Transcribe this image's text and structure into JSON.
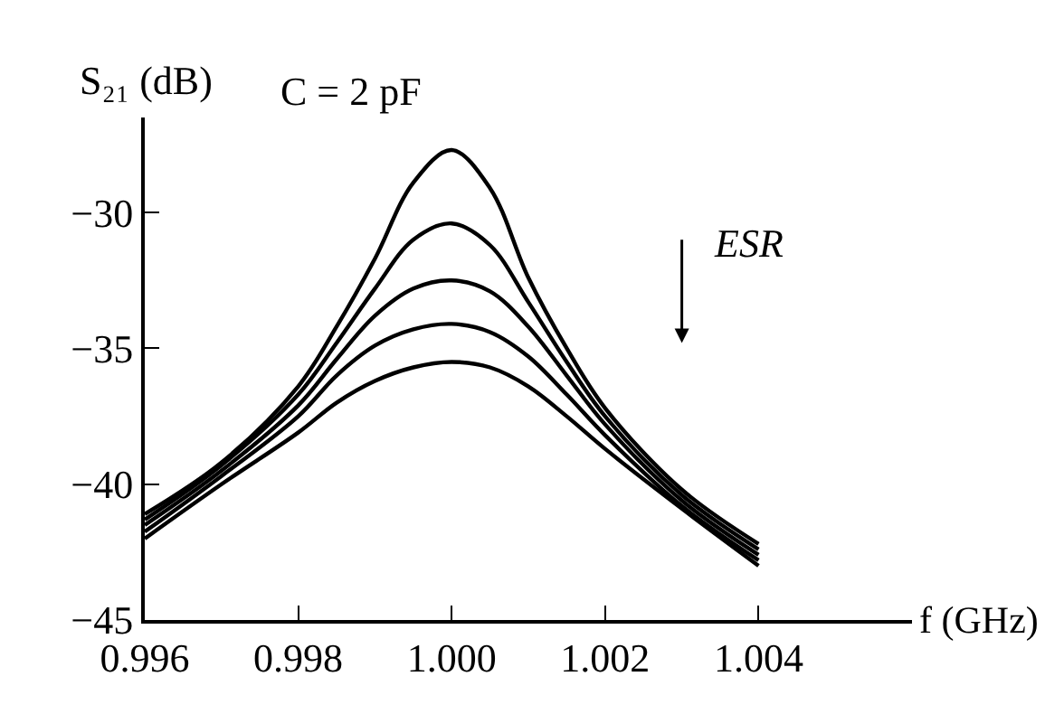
{
  "chart_data": {
    "type": "line",
    "xlabel": "f (GHz)",
    "ylabel": "S₂₁ (dB)",
    "x": [
      0.996,
      0.997,
      0.998,
      0.9985,
      0.999,
      0.9995,
      1.0,
      1.0005,
      1.001,
      1.0015,
      1.002,
      1.003,
      1.004
    ],
    "series": [
      {
        "color": "#000000",
        "values": [
          -41.1,
          -39.2,
          -36.4,
          -34.2,
          -31.7,
          -28.9,
          -27.7,
          -29.1,
          -32.4,
          -35.0,
          -37.2,
          -40.2,
          -42.2
        ]
      },
      {
        "color": "#000000",
        "values": [
          -41.3,
          -39.3,
          -36.7,
          -34.8,
          -32.8,
          -31.0,
          -30.4,
          -31.2,
          -33.3,
          -35.5,
          -37.5,
          -40.4,
          -42.4
        ]
      },
      {
        "color": "#000000",
        "values": [
          -41.5,
          -39.5,
          -37.1,
          -35.4,
          -33.8,
          -32.8,
          -32.5,
          -32.9,
          -34.2,
          -36.0,
          -37.8,
          -40.6,
          -42.6
        ]
      },
      {
        "color": "#000000",
        "values": [
          -41.75,
          -39.7,
          -37.5,
          -36.0,
          -34.9,
          -34.3,
          -34.1,
          -34.4,
          -35.3,
          -36.7,
          -38.2,
          -40.8,
          -42.8
        ]
      },
      {
        "color": "#000000",
        "values": [
          -42.0,
          -40.0,
          -38.1,
          -37.0,
          -36.2,
          -35.7,
          -35.5,
          -35.7,
          -36.4,
          -37.5,
          -38.7,
          -40.9,
          -43.0
        ]
      }
    ],
    "xlim": [
      0.996,
      1.006
    ],
    "ylim": [
      -45,
      -26.5
    ],
    "xticks": [
      {
        "value": 0.996,
        "label": "0.996"
      },
      {
        "value": 0.998,
        "label": "0.998"
      },
      {
        "value": 1.0,
        "label": "1.000"
      },
      {
        "value": 1.002,
        "label": "1.002"
      },
      {
        "value": 1.004,
        "label": "1.004"
      }
    ],
    "yticks": [
      {
        "value": -45,
        "label": "−45"
      },
      {
        "value": -40,
        "label": "−40"
      },
      {
        "value": -35,
        "label": "−35"
      },
      {
        "value": -30,
        "label": "−30"
      }
    ],
    "grid": false,
    "marker": "none",
    "line_style": "solid",
    "annotations": [
      "C = 2 pF",
      "ESR"
    ]
  }
}
